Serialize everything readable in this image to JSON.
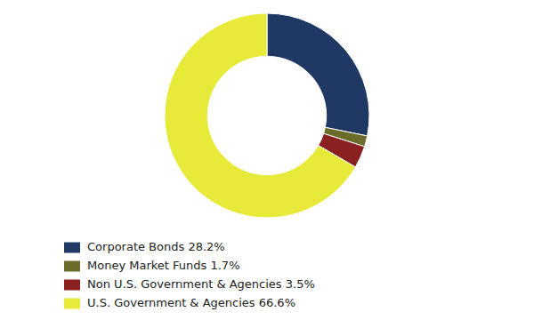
{
  "chart_data": {
    "type": "donut",
    "labels": [
      "Corporate Bonds 28.2%",
      "Money Market Funds 1.7%",
      "Non U.S. Government & Agencies 3.5%",
      "U.S. Government & Agencies 66.6%"
    ],
    "values": [
      28.2,
      1.7,
      3.5,
      66.6
    ],
    "colors": [
      "#1f3864",
      "#6b6b2a",
      "#8b2020",
      "#e8ea3a"
    ],
    "legend": "lower left"
  }
}
